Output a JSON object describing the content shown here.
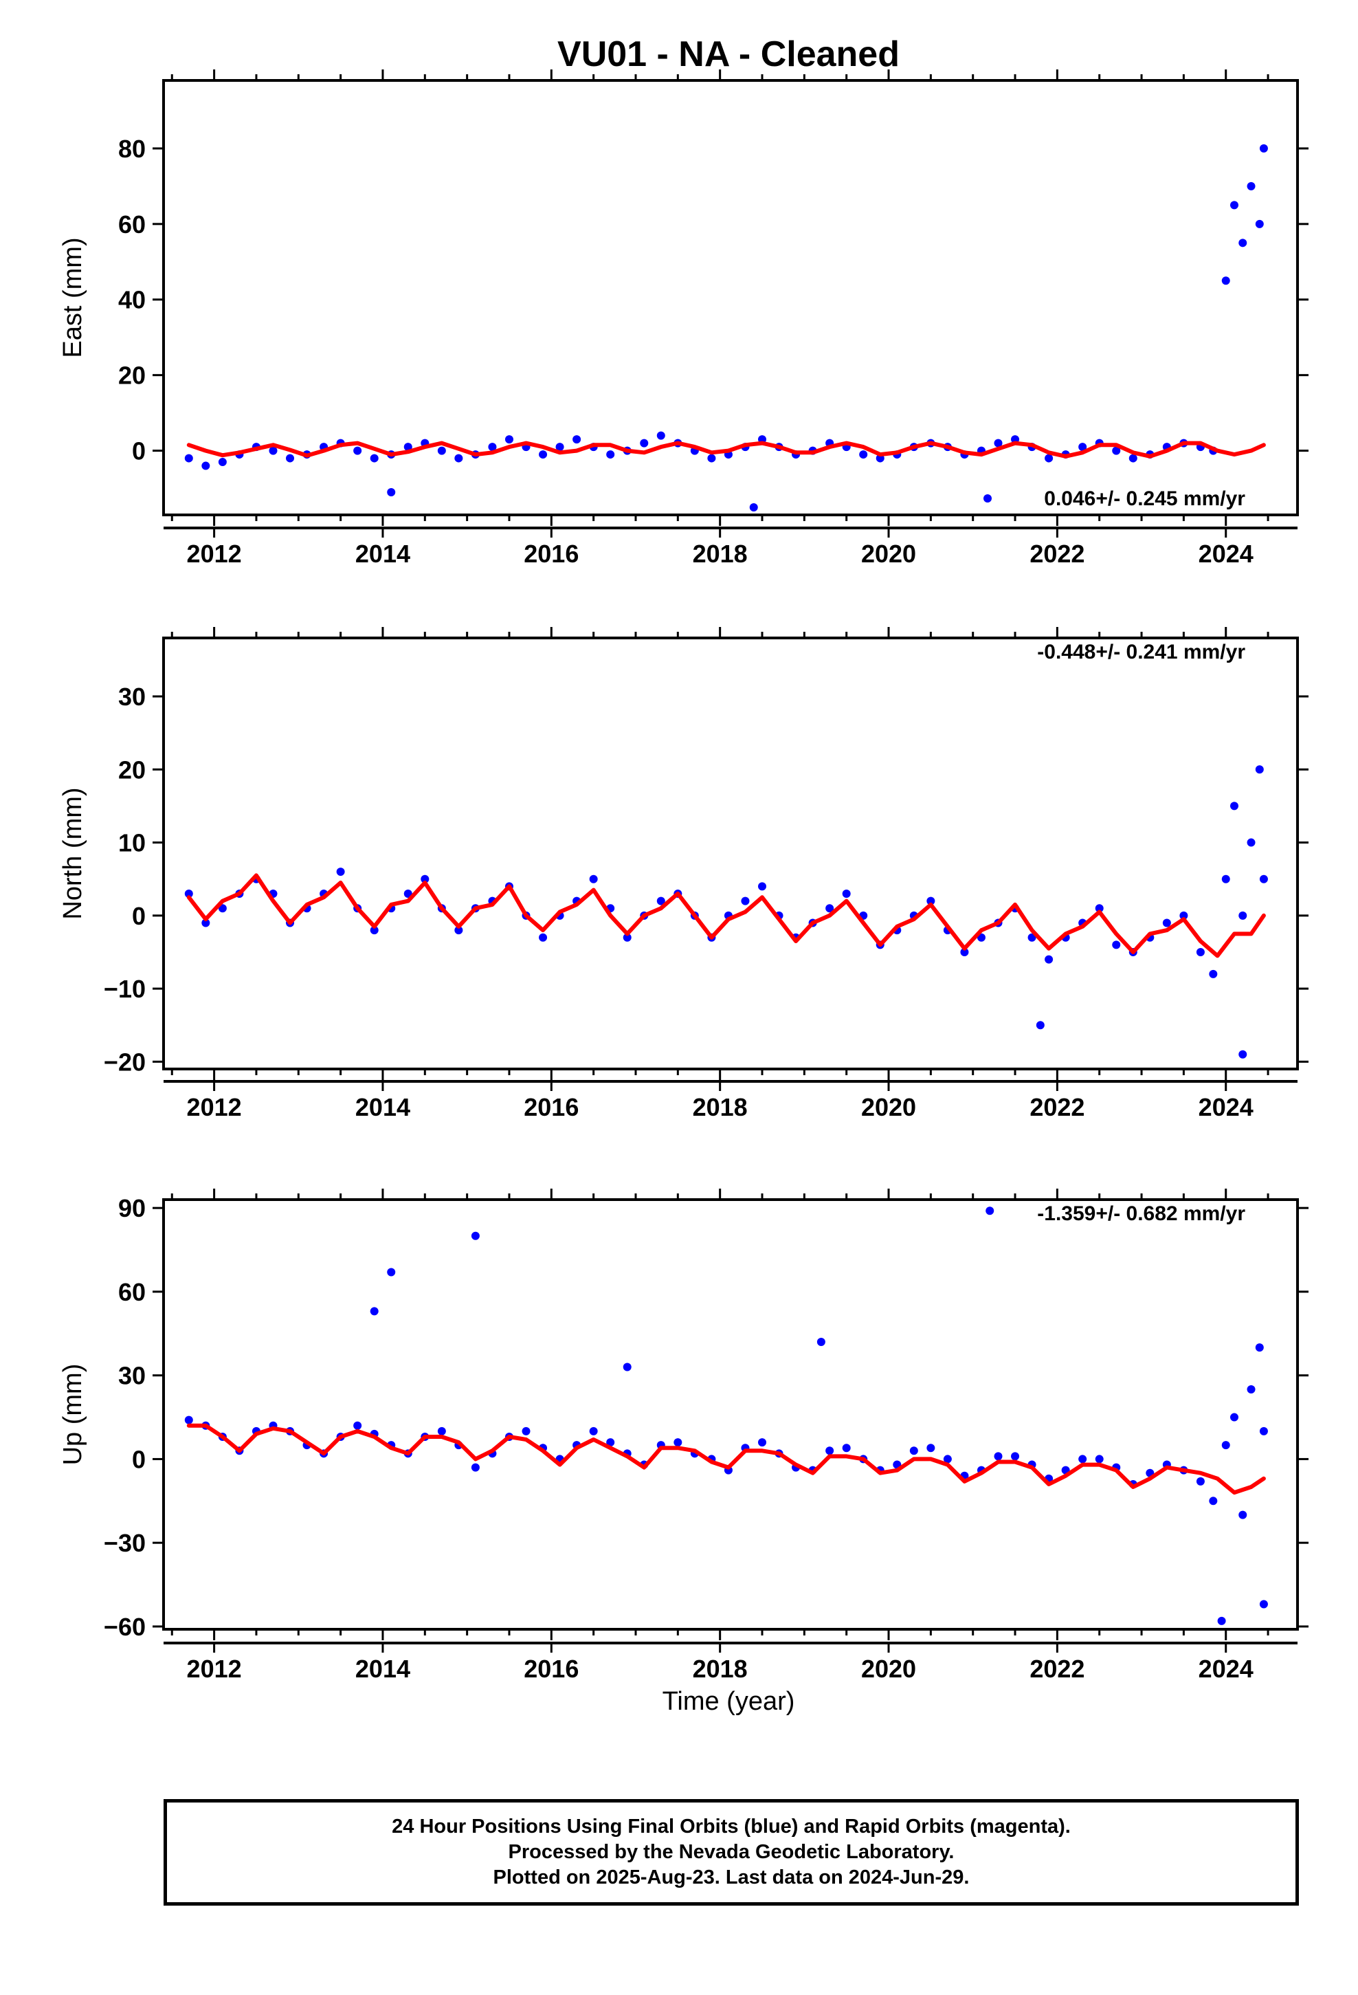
{
  "title": "VU01  - NA - Cleaned",
  "xlabel": "Time (year)",
  "colors": {
    "points": "#0000ff",
    "model": "#ff0000",
    "frame": "#000000"
  },
  "footer": {
    "line1": "24 Hour Positions Using Final Orbits (blue) and Rapid Orbits (magenta).",
    "line2": "Processed by the Nevada Geodetic Laboratory.",
    "line3": "Plotted on 2025-Aug-23. Last data on 2024-Jun-29."
  },
  "chart_data": [
    {
      "type": "scatter",
      "ylabel": "East (mm)",
      "rate": "0.046+/- 0.245 mm/yr",
      "legend_marker": true,
      "xlim": [
        2011.4,
        2024.85
      ],
      "ylim": [
        -17,
        98
      ],
      "xticks": [
        2012,
        2014,
        2016,
        2018,
        2020,
        2022,
        2024
      ],
      "xtick_labels": [
        "2012",
        "2014",
        "2016",
        "2018",
        "2020",
        "2022",
        "2024"
      ],
      "yticks": [
        0,
        20,
        40,
        60,
        80
      ],
      "ytick_labels": [
        "0",
        "20",
        "40",
        "60",
        "80"
      ],
      "series": [
        {
          "kind": "points",
          "x": [
            2011.7,
            2011.9,
            2012.1,
            2012.3,
            2012.5,
            2012.7,
            2012.9,
            2013.1,
            2013.3,
            2013.5,
            2013.7,
            2013.9,
            2014.1,
            2014.3,
            2014.5,
            2014.7,
            2014.9,
            2015.1,
            2015.3,
            2015.5,
            2015.7,
            2015.9,
            2016.1,
            2016.3,
            2016.5,
            2016.7,
            2016.9,
            2017.1,
            2017.3,
            2017.5,
            2017.7,
            2017.9,
            2018.1,
            2018.3,
            2018.5,
            2018.7,
            2018.9,
            2019.1,
            2019.3,
            2019.5,
            2019.7,
            2019.9,
            2020.1,
            2020.3,
            2020.5,
            2020.7,
            2020.9,
            2021.1,
            2021.3,
            2021.5,
            2021.7,
            2021.9,
            2022.1,
            2022.3,
            2022.5,
            2022.7,
            2022.9,
            2023.1,
            2023.3,
            2023.5,
            2023.7,
            2023.85,
            2024.0,
            2024.1,
            2024.2,
            2024.3,
            2024.4,
            2024.45,
            2014.1,
            2018.4
          ],
          "y": [
            -2,
            -4,
            -3,
            -1,
            1,
            0,
            -2,
            -1,
            1,
            2,
            0,
            -2,
            -1,
            1,
            2,
            0,
            -2,
            -1,
            1,
            3,
            1,
            -1,
            1,
            3,
            1,
            -1,
            0,
            2,
            4,
            2,
            0,
            -2,
            -1,
            1,
            3,
            1,
            -1,
            0,
            2,
            1,
            -1,
            -2,
            -1,
            1,
            2,
            1,
            -1,
            0,
            2,
            3,
            1,
            -2,
            -1,
            1,
            2,
            0,
            -2,
            -1,
            1,
            2,
            1,
            0,
            45,
            65,
            55,
            70,
            60,
            80,
            -11,
            -15
          ]
        },
        {
          "kind": "model",
          "x": [
            2011.7,
            2011.9,
            2012.1,
            2012.3,
            2012.5,
            2012.7,
            2012.9,
            2013.1,
            2013.3,
            2013.5,
            2013.7,
            2013.9,
            2014.1,
            2014.3,
            2014.5,
            2014.7,
            2014.9,
            2015.1,
            2015.3,
            2015.5,
            2015.7,
            2015.9,
            2016.1,
            2016.3,
            2016.5,
            2016.7,
            2016.9,
            2017.1,
            2017.3,
            2017.5,
            2017.7,
            2017.9,
            2018.1,
            2018.3,
            2018.5,
            2018.7,
            2018.9,
            2019.1,
            2019.3,
            2019.5,
            2019.7,
            2019.9,
            2020.1,
            2020.3,
            2020.5,
            2020.7,
            2020.9,
            2021.1,
            2021.3,
            2021.5,
            2021.7,
            2021.9,
            2022.1,
            2022.3,
            2022.5,
            2022.7,
            2022.9,
            2023.1,
            2023.3,
            2023.5,
            2023.7,
            2023.9,
            2024.1,
            2024.3,
            2024.45
          ],
          "y": [
            1.5,
            0,
            -1.2,
            -0.5,
            0.5,
            1.5,
            0.2,
            -1.3,
            0,
            1.5,
            2,
            0.5,
            -1,
            -0.3,
            1,
            2,
            0.5,
            -1,
            -0.5,
            1,
            2,
            1,
            -0.5,
            0,
            1.5,
            1.5,
            0,
            -0.5,
            1,
            2,
            1,
            -0.5,
            0,
            1.5,
            2,
            1,
            -0.5,
            -0.5,
            1,
            2,
            1,
            -1,
            -0.5,
            1,
            2,
            1,
            -0.5,
            -1,
            0.5,
            2,
            1.5,
            -0.5,
            -1.5,
            -0.5,
            1.5,
            1.5,
            -0.5,
            -1.5,
            0,
            2,
            2,
            0,
            -1,
            0,
            1.5
          ]
        }
      ]
    },
    {
      "type": "scatter",
      "ylabel": "North (mm)",
      "rate": "-0.448+/- 0.241 mm/yr",
      "legend_marker": false,
      "xlim": [
        2011.4,
        2024.85
      ],
      "ylim": [
        -21,
        38
      ],
      "xticks": [
        2012,
        2014,
        2016,
        2018,
        2020,
        2022,
        2024
      ],
      "xtick_labels": [
        "2012",
        "2014",
        "2016",
        "2018",
        "2020",
        "2022",
        "2024"
      ],
      "yticks": [
        -20,
        -10,
        0,
        10,
        20,
        30
      ],
      "ytick_labels": [
        "−20",
        "−10",
        "0",
        "10",
        "20",
        "30"
      ],
      "series": [
        {
          "kind": "points",
          "x": [
            2011.7,
            2011.9,
            2012.1,
            2012.3,
            2012.5,
            2012.7,
            2012.9,
            2013.1,
            2013.3,
            2013.5,
            2013.7,
            2013.9,
            2014.1,
            2014.3,
            2014.5,
            2014.7,
            2014.9,
            2015.1,
            2015.3,
            2015.5,
            2015.7,
            2015.9,
            2016.1,
            2016.3,
            2016.5,
            2016.7,
            2016.9,
            2017.1,
            2017.3,
            2017.5,
            2017.7,
            2017.9,
            2018.1,
            2018.3,
            2018.5,
            2018.7,
            2018.9,
            2019.1,
            2019.3,
            2019.5,
            2019.7,
            2019.9,
            2020.1,
            2020.3,
            2020.5,
            2020.7,
            2020.9,
            2021.1,
            2021.3,
            2021.5,
            2021.7,
            2021.9,
            2022.1,
            2022.3,
            2022.5,
            2022.7,
            2022.9,
            2023.1,
            2023.3,
            2023.5,
            2023.7,
            2023.85,
            2024.0,
            2024.1,
            2024.2,
            2024.3,
            2024.4,
            2024.45,
            2021.8,
            2024.2
          ],
          "y": [
            3,
            -1,
            1,
            3,
            5,
            3,
            -1,
            1,
            3,
            6,
            1,
            -2,
            1,
            3,
            5,
            1,
            -2,
            1,
            2,
            4,
            0,
            -3,
            0,
            2,
            5,
            1,
            -3,
            0,
            2,
            3,
            0,
            -3,
            0,
            2,
            4,
            0,
            -3,
            -1,
            1,
            3,
            0,
            -4,
            -2,
            0,
            2,
            -2,
            -5,
            -3,
            -1,
            1,
            -3,
            -6,
            -3,
            -1,
            1,
            -4,
            -5,
            -3,
            -1,
            0,
            -5,
            -8,
            5,
            15,
            0,
            10,
            20,
            5,
            -15,
            -19
          ]
        },
        {
          "kind": "model",
          "x": [
            2011.7,
            2011.9,
            2012.1,
            2012.3,
            2012.5,
            2012.7,
            2012.9,
            2013.1,
            2013.3,
            2013.5,
            2013.7,
            2013.9,
            2014.1,
            2014.3,
            2014.5,
            2014.7,
            2014.9,
            2015.1,
            2015.3,
            2015.5,
            2015.7,
            2015.9,
            2016.1,
            2016.3,
            2016.5,
            2016.7,
            2016.9,
            2017.1,
            2017.3,
            2017.5,
            2017.7,
            2017.9,
            2018.1,
            2018.3,
            2018.5,
            2018.7,
            2018.9,
            2019.1,
            2019.3,
            2019.5,
            2019.7,
            2019.9,
            2020.1,
            2020.3,
            2020.5,
            2020.7,
            2020.9,
            2021.1,
            2021.3,
            2021.5,
            2021.7,
            2021.9,
            2022.1,
            2022.3,
            2022.5,
            2022.7,
            2022.9,
            2023.1,
            2023.3,
            2023.5,
            2023.7,
            2023.9,
            2024.1,
            2024.3,
            2024.45
          ],
          "y": [
            2.5,
            -0.5,
            2,
            3,
            5.5,
            2,
            -1,
            1.5,
            2.5,
            4.5,
            1,
            -1.5,
            1.5,
            2,
            4.5,
            1,
            -1.5,
            1,
            1.5,
            4,
            0,
            -2,
            0.5,
            1.5,
            3.5,
            0,
            -2.5,
            0,
            1,
            3,
            0,
            -3,
            -0.5,
            0.5,
            2.5,
            -0.5,
            -3.5,
            -1,
            0,
            2,
            -1,
            -4,
            -1.5,
            -0.5,
            1.5,
            -1.5,
            -4.5,
            -2,
            -1,
            1.5,
            -2,
            -4.5,
            -2.5,
            -1.5,
            0.5,
            -2.5,
            -5,
            -2.5,
            -2,
            -0.5,
            -3.5,
            -5.5,
            -2.5,
            -2.5,
            0
          ]
        }
      ]
    },
    {
      "type": "scatter",
      "ylabel": "Up (mm)",
      "rate": "-1.359+/- 0.682 mm/yr",
      "legend_marker": false,
      "xlim": [
        2011.4,
        2024.85
      ],
      "ylim": [
        -61,
        93
      ],
      "xticks": [
        2012,
        2014,
        2016,
        2018,
        2020,
        2022,
        2024
      ],
      "xtick_labels": [
        "2012",
        "2014",
        "2016",
        "2018",
        "2020",
        "2022",
        "2024"
      ],
      "yticks": [
        -60,
        -30,
        0,
        30,
        60,
        90
      ],
      "ytick_labels": [
        "−60",
        "−30",
        "0",
        "30",
        "60",
        "90"
      ],
      "series": [
        {
          "kind": "points",
          "x": [
            2011.7,
            2011.9,
            2012.1,
            2012.3,
            2012.5,
            2012.7,
            2012.9,
            2013.1,
            2013.3,
            2013.5,
            2013.7,
            2013.9,
            2014.1,
            2014.3,
            2014.5,
            2014.7,
            2014.9,
            2015.1,
            2015.3,
            2015.5,
            2015.7,
            2015.9,
            2016.1,
            2016.3,
            2016.5,
            2016.7,
            2016.9,
            2017.1,
            2017.3,
            2017.5,
            2017.7,
            2017.9,
            2018.1,
            2018.3,
            2018.5,
            2018.7,
            2018.9,
            2019.1,
            2019.3,
            2019.5,
            2019.7,
            2019.9,
            2020.1,
            2020.3,
            2020.5,
            2020.7,
            2020.9,
            2021.1,
            2021.3,
            2021.5,
            2021.7,
            2021.9,
            2022.1,
            2022.3,
            2022.5,
            2022.7,
            2022.9,
            2023.1,
            2023.3,
            2023.5,
            2023.7,
            2023.85,
            2024.0,
            2024.1,
            2024.2,
            2024.3,
            2024.4,
            2024.45,
            2013.9,
            2014.1,
            2015.1,
            2016.9,
            2019.2,
            2021.2,
            2023.95,
            2024.45
          ],
          "y": [
            14,
            12,
            8,
            3,
            10,
            12,
            10,
            5,
            2,
            8,
            12,
            9,
            5,
            2,
            8,
            10,
            5,
            -3,
            2,
            8,
            10,
            4,
            0,
            5,
            10,
            6,
            2,
            -2,
            5,
            6,
            2,
            0,
            -4,
            4,
            6,
            2,
            -3,
            -4,
            3,
            4,
            0,
            -4,
            -2,
            3,
            4,
            0,
            -6,
            -4,
            1,
            1,
            -2,
            -7,
            -4,
            0,
            0,
            -3,
            -9,
            -5,
            -2,
            -4,
            -8,
            -15,
            5,
            15,
            -20,
            25,
            40,
            10,
            53,
            67,
            80,
            33,
            42,
            89,
            -58,
            -52
          ]
        },
        {
          "kind": "model",
          "x": [
            2011.7,
            2011.9,
            2012.1,
            2012.3,
            2012.5,
            2012.7,
            2012.9,
            2013.1,
            2013.3,
            2013.5,
            2013.7,
            2013.9,
            2014.1,
            2014.3,
            2014.5,
            2014.7,
            2014.9,
            2015.1,
            2015.3,
            2015.5,
            2015.7,
            2015.9,
            2016.1,
            2016.3,
            2016.5,
            2016.7,
            2016.9,
            2017.1,
            2017.3,
            2017.5,
            2017.7,
            2017.9,
            2018.1,
            2018.3,
            2018.5,
            2018.7,
            2018.9,
            2019.1,
            2019.3,
            2019.5,
            2019.7,
            2019.9,
            2020.1,
            2020.3,
            2020.5,
            2020.7,
            2020.9,
            2021.1,
            2021.3,
            2021.5,
            2021.7,
            2021.9,
            2022.1,
            2022.3,
            2022.5,
            2022.7,
            2022.9,
            2023.1,
            2023.3,
            2023.5,
            2023.7,
            2023.9,
            2024.1,
            2024.3,
            2024.45
          ],
          "y": [
            12,
            12,
            8,
            3,
            9,
            11,
            10,
            6,
            2,
            8,
            10,
            8,
            4,
            2,
            8,
            8,
            6,
            0,
            3,
            8,
            7,
            3,
            -2,
            4,
            7,
            4,
            1,
            -3,
            4,
            4,
            3,
            -1,
            -3,
            3,
            3,
            2,
            -2,
            -5,
            1,
            1,
            0,
            -5,
            -4,
            0,
            0,
            -2,
            -8,
            -5,
            -1,
            -1,
            -3,
            -9,
            -6,
            -2,
            -2,
            -4,
            -10,
            -7,
            -3,
            -4,
            -5,
            -7,
            -12,
            -10,
            -7
          ]
        }
      ]
    }
  ]
}
